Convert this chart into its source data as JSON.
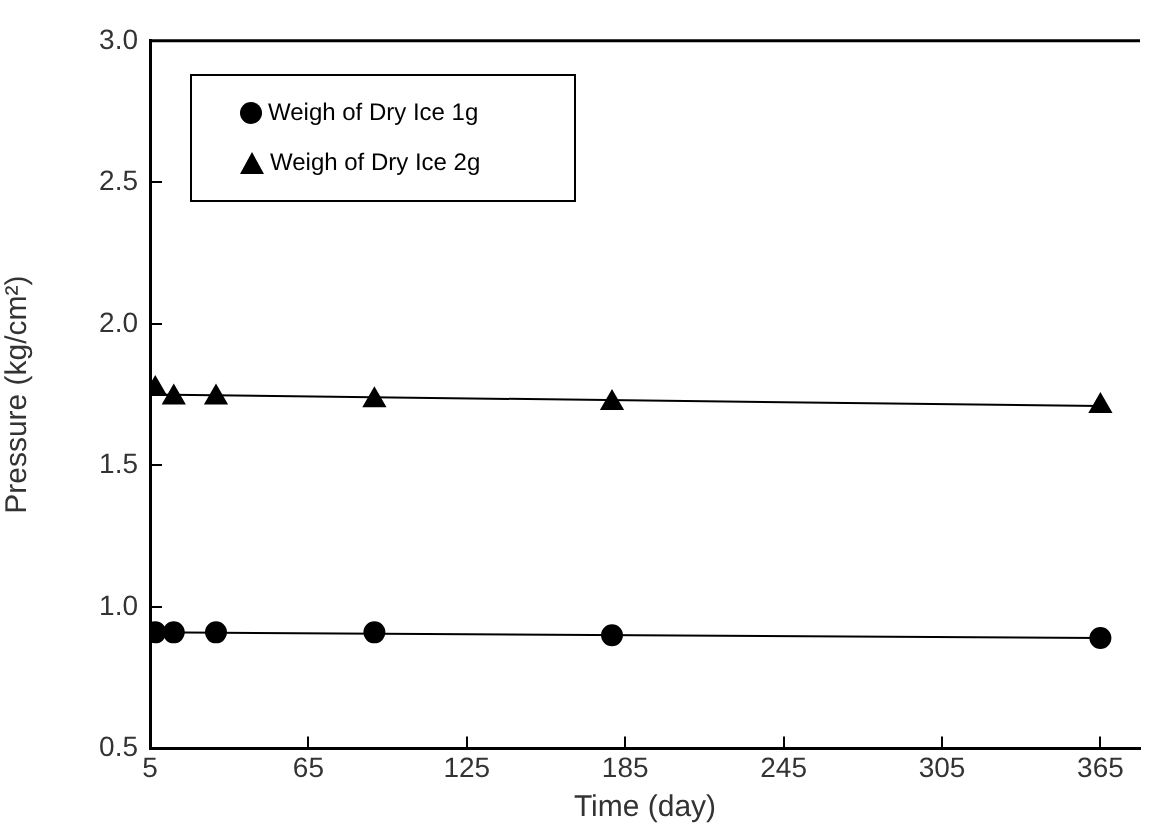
{
  "chart_data": {
    "type": "scatter",
    "xlabel": "Time (day)",
    "ylabel": "Pressure (kg/cm²)",
    "xlim": [
      5,
      380
    ],
    "xticks": [
      5,
      65,
      125,
      185,
      245,
      305,
      365
    ],
    "ylim": [
      0.5,
      3.0
    ],
    "yticks": [
      {
        "value": 0.5,
        "label": "0.5"
      },
      {
        "value": 1.0,
        "label": "1.0"
      },
      {
        "value": 1.5,
        "label": "1.5"
      },
      {
        "value": 2.0,
        "label": "2.0"
      },
      {
        "value": 2.5,
        "label": "2.5"
      },
      {
        "value": 3.0,
        "label": "3.0"
      }
    ],
    "grid": false,
    "legend": "top left",
    "series": [
      {
        "name": "Weigh of Dry Ice 1g",
        "type": "scatter",
        "marker": "circle",
        "color": "#000000",
        "x": [
          7,
          14,
          30,
          90,
          180,
          365
        ],
        "values": [
          0.91,
          0.91,
          0.91,
          0.91,
          0.9,
          0.89
        ]
      },
      {
        "name": "Weigh of Dry Ice 2g",
        "type": "scatter",
        "marker": "triangle",
        "color": "#000000",
        "x": [
          7,
          14,
          30,
          90,
          180,
          365
        ],
        "values": [
          1.77,
          1.74,
          1.74,
          1.73,
          1.72,
          1.71
        ]
      },
      {
        "type": "line",
        "marker": "none",
        "color": "#000000",
        "x": [
          5,
          365
        ],
        "values": [
          0.91,
          0.89
        ]
      },
      {
        "type": "line",
        "marker": "none",
        "color": "#000000",
        "x": [
          5,
          365
        ],
        "values": [
          1.75,
          1.71
        ]
      }
    ]
  }
}
